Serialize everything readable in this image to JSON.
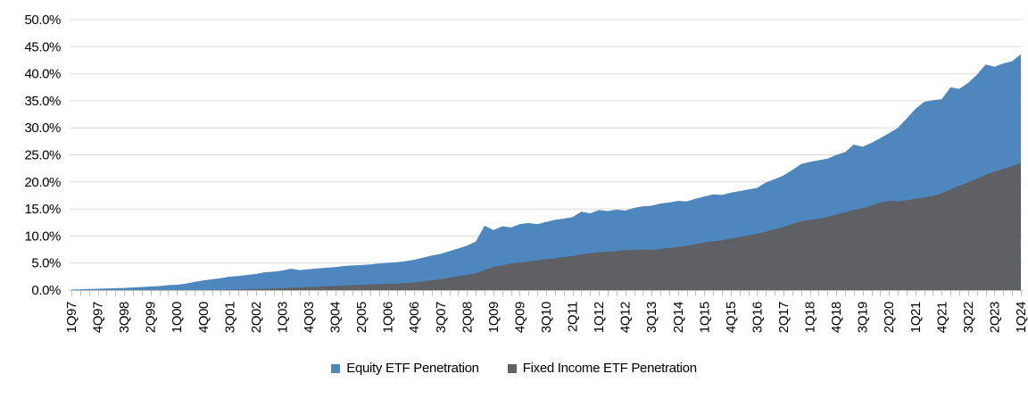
{
  "chart_data": {
    "type": "area",
    "mode": "overlapping",
    "title": "",
    "xlabel": "",
    "ylabel": "",
    "y_min": 0,
    "y_max": 50,
    "y_tick_labels": [
      "0.0%",
      "5.0%",
      "10.0%",
      "15.0%",
      "20.0%",
      "25.0%",
      "30.0%",
      "35.0%",
      "40.0%",
      "45.0%",
      "50.0%"
    ],
    "x_tick_every": 3,
    "x_tick_labels": [
      "1Q97",
      "4Q97",
      "3Q98",
      "2Q99",
      "1Q00",
      "4Q00",
      "3Q01",
      "2Q02",
      "1Q03",
      "4Q03",
      "3Q04",
      "2Q05",
      "1Q06",
      "4Q06",
      "3Q07",
      "2Q08",
      "1Q09",
      "4Q09",
      "3Q10",
      "2Q11",
      "1Q12",
      "4Q12",
      "3Q13",
      "2Q14",
      "1Q15",
      "4Q15",
      "3Q16",
      "2Q17",
      "1Q18",
      "4Q18",
      "3Q19",
      "2Q20",
      "1Q21",
      "4Q21",
      "3Q22",
      "2Q23",
      "1Q24"
    ],
    "grid": "horizontal",
    "legend_position": "bottom",
    "colors": {
      "gridline": "#D9D9D9",
      "axis": "#BFBFBF",
      "text": "#000000"
    },
    "series": [
      {
        "name": "Equity ETF Penetration",
        "color": "#4E87BE",
        "values": [
          0.1,
          0.15,
          0.2,
          0.25,
          0.3,
          0.35,
          0.4,
          0.5,
          0.55,
          0.65,
          0.75,
          0.9,
          1.0,
          1.2,
          1.5,
          1.8,
          2.0,
          2.2,
          2.5,
          2.6,
          2.8,
          3.0,
          3.3,
          3.4,
          3.6,
          3.95,
          3.7,
          3.85,
          4.0,
          4.15,
          4.25,
          4.45,
          4.55,
          4.65,
          4.75,
          4.9,
          5.05,
          5.15,
          5.35,
          5.6,
          6.0,
          6.4,
          6.7,
          7.2,
          7.7,
          8.2,
          9.0,
          11.9,
          11.1,
          11.8,
          11.6,
          12.2,
          12.4,
          12.2,
          12.6,
          13.0,
          13.2,
          13.5,
          14.5,
          14.2,
          14.8,
          14.6,
          14.9,
          14.7,
          15.2,
          15.5,
          15.6,
          16.0,
          16.2,
          16.5,
          16.4,
          16.9,
          17.3,
          17.7,
          17.6,
          18.0,
          18.3,
          18.6,
          18.9,
          19.9,
          20.5,
          21.2,
          22.2,
          23.3,
          23.7,
          24.0,
          24.3,
          25.0,
          25.5,
          26.9,
          26.5,
          27.2,
          28.1,
          29.0,
          30.0,
          31.7,
          33.5,
          34.8,
          35.1,
          35.3,
          37.5,
          37.2,
          38.3,
          39.8,
          41.7,
          41.3,
          41.9,
          42.3,
          43.6
        ]
      },
      {
        "name": "Fixed Income ETF Penetration",
        "color": "#5E6064",
        "values": [
          0,
          0,
          0,
          0,
          0,
          0,
          0,
          0,
          0,
          0,
          0,
          0,
          0,
          0,
          0,
          0,
          0,
          0,
          0.05,
          0.1,
          0.15,
          0.2,
          0.25,
          0.3,
          0.35,
          0.45,
          0.5,
          0.55,
          0.6,
          0.7,
          0.75,
          0.85,
          0.9,
          1.0,
          1.05,
          1.1,
          1.15,
          1.2,
          1.3,
          1.4,
          1.6,
          1.8,
          2.0,
          2.3,
          2.6,
          2.8,
          3.1,
          3.7,
          4.3,
          4.6,
          4.9,
          5.1,
          5.3,
          5.5,
          5.7,
          5.9,
          6.1,
          6.3,
          6.6,
          6.8,
          7.0,
          7.1,
          7.2,
          7.4,
          7.4,
          7.5,
          7.4,
          7.6,
          7.8,
          8.0,
          8.2,
          8.5,
          8.8,
          9.0,
          9.2,
          9.5,
          9.8,
          10.1,
          10.4,
          10.8,
          11.2,
          11.7,
          12.2,
          12.7,
          13.0,
          13.2,
          13.5,
          14.0,
          14.4,
          14.8,
          15.2,
          15.6,
          16.2,
          16.5,
          16.4,
          16.6,
          16.9,
          17.1,
          17.4,
          17.9,
          18.6,
          19.3,
          19.9,
          20.6,
          21.3,
          21.9,
          22.4,
          22.9,
          23.5
        ]
      }
    ]
  }
}
